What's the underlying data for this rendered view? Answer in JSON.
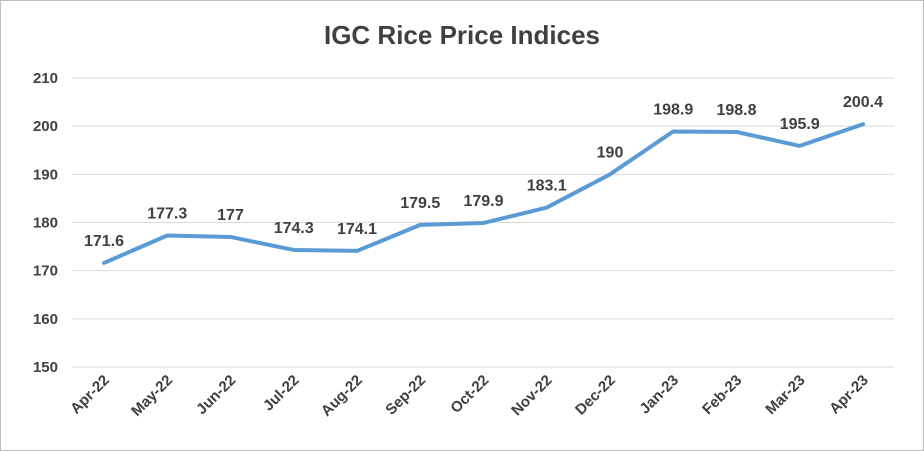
{
  "chart_data": {
    "type": "line",
    "title": "IGC Rice Price Indices",
    "xlabel": "",
    "ylabel": "",
    "categories": [
      "Apr-22",
      "May-22",
      "Jun-22",
      "Jul-22",
      "Aug-22",
      "Sep-22",
      "Oct-22",
      "Nov-22",
      "Dec-22",
      "Jan-23",
      "Feb-23",
      "Mar-23",
      "Apr-23"
    ],
    "series": [
      {
        "values": [
          171.6,
          177.3,
          177,
          174.3,
          174.1,
          179.5,
          179.9,
          183.1,
          190,
          198.9,
          198.8,
          195.9,
          200.4
        ],
        "labels": [
          "171.6",
          "177.3",
          "177",
          "174.3",
          "174.1",
          "179.5",
          "179.9",
          "183.1",
          "190",
          "198.9",
          "198.8",
          "195.9",
          "200.4"
        ],
        "color": "#5b9bd5"
      }
    ],
    "ylim": [
      150,
      210
    ],
    "yticks": [
      "150",
      "160",
      "170",
      "180",
      "190",
      "200",
      "210"
    ],
    "grid": true,
    "legend": "none"
  }
}
